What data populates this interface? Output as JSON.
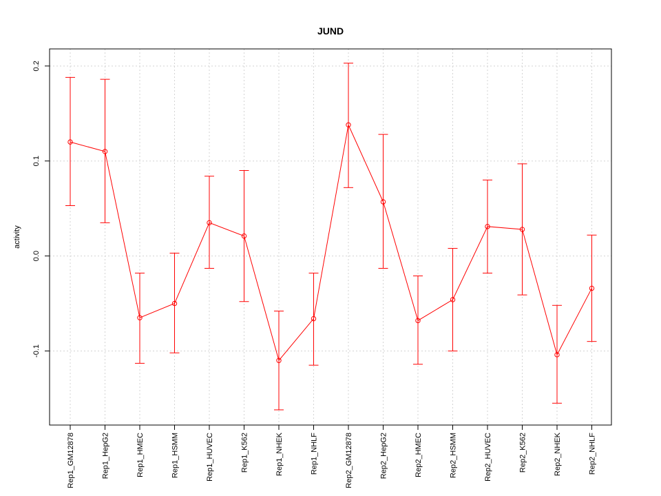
{
  "chart_data": {
    "type": "line",
    "title": "JUND",
    "xlabel": "",
    "ylabel": "activity",
    "categories": [
      "Rep1_GM12878",
      "Rep1_HepG2",
      "Rep1_HMEC",
      "Rep1_HSMM",
      "Rep1_HUVEC",
      "Rep1_K562",
      "Rep1_NHEK",
      "Rep1_NHLF",
      "Rep2_GM12878",
      "Rep2_HepG2",
      "Rep2_HMEC",
      "Rep2_HSMM",
      "Rep2_HUVEC",
      "Rep2_K562",
      "Rep2_NHEK",
      "Rep2_NHLF"
    ],
    "values": [
      0.12,
      0.11,
      -0.065,
      -0.05,
      0.035,
      0.021,
      -0.11,
      -0.066,
      0.138,
      0.057,
      -0.068,
      -0.046,
      0.031,
      0.028,
      -0.104,
      -0.034
    ],
    "upper": [
      0.188,
      0.186,
      -0.018,
      0.003,
      0.084,
      0.09,
      -0.058,
      -0.018,
      0.203,
      0.128,
      -0.021,
      0.008,
      0.08,
      0.097,
      -0.052,
      0.022
    ],
    "lower": [
      0.053,
      0.035,
      -0.113,
      -0.102,
      -0.013,
      -0.048,
      -0.162,
      -0.115,
      0.072,
      -0.013,
      -0.114,
      -0.1,
      -0.018,
      -0.041,
      -0.155,
      -0.09
    ],
    "yticks": [
      -0.1,
      0.0,
      0.1,
      0.2
    ],
    "ytick_labels": [
      "-0.1",
      "0.0",
      "0.1",
      "0.2"
    ],
    "ylim": [
      -0.178,
      0.218
    ],
    "grid": true,
    "color": "#ff0000"
  }
}
